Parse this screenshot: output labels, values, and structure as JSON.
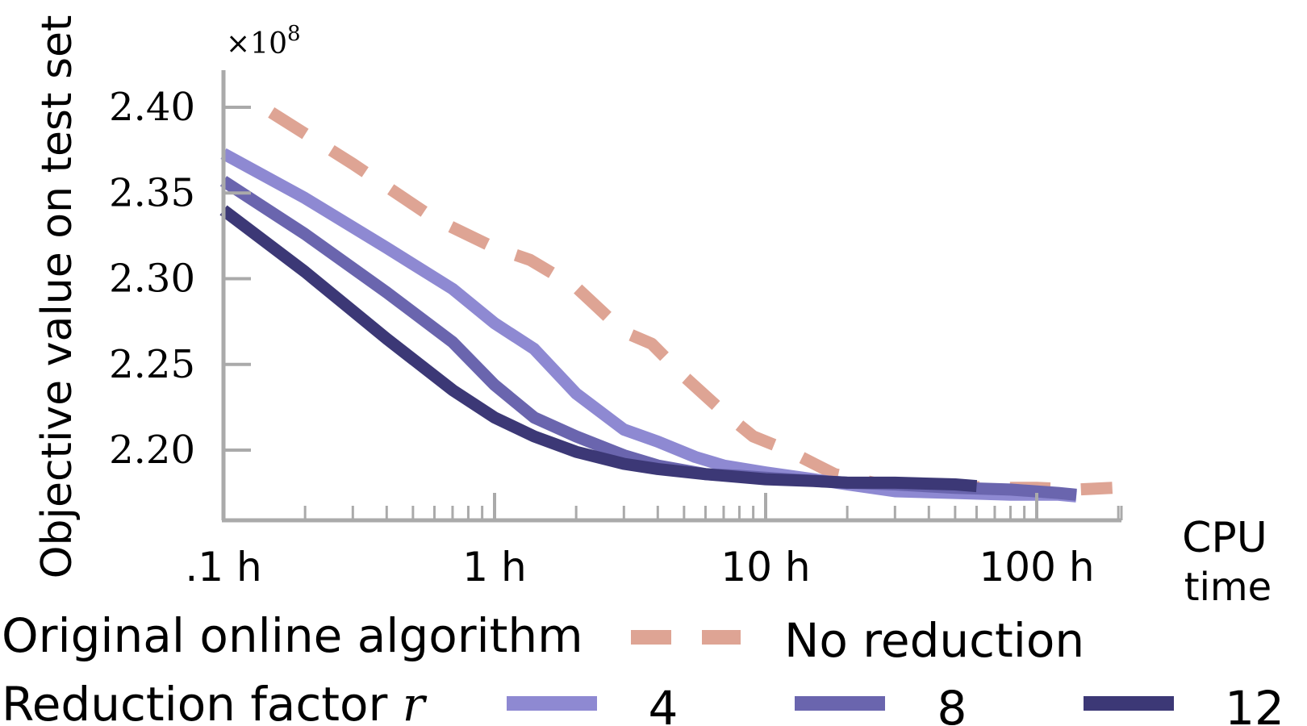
{
  "chart_data": {
    "type": "line",
    "ylabel": "Objective value on test set",
    "y_multiplier": "×10",
    "y_multiplier_exponent": "8",
    "xlabel_line1": "CPU",
    "xlabel_line2": "time",
    "x_scale": "log",
    "xlim": [
      0.1,
      200
    ],
    "ylim": [
      2.17,
      2.42
    ],
    "x_ticks": [
      0.1,
      1,
      10,
      100
    ],
    "x_tick_labels": [
      ".1 h",
      "1 h",
      "10 h",
      "100 h"
    ],
    "y_ticks": [
      2.2,
      2.25,
      2.3,
      2.35,
      2.4
    ],
    "y_tick_labels": [
      "2.20",
      "2.25",
      "2.30",
      "2.35",
      "2.40"
    ],
    "legend": {
      "position": "bottom",
      "group1_label": "Original online algorithm",
      "group2_label": "Reduction factor",
      "group2_symbol": "r"
    },
    "series": [
      {
        "name": "No reduction",
        "color": "#dea494",
        "style": "dashed",
        "x": [
          0.15,
          0.3,
          0.6,
          1.0,
          1.35,
          2.0,
          3.0,
          3.8,
          5.0,
          7.0,
          9.0,
          12.0,
          18.0,
          25.0,
          35.0,
          50.0,
          70.0,
          100.0,
          140.0,
          190.0
        ],
        "y": [
          2.397,
          2.367,
          2.335,
          2.318,
          2.311,
          2.295,
          2.269,
          2.262,
          2.243,
          2.222,
          2.208,
          2.2,
          2.186,
          2.181,
          2.18,
          2.179,
          2.178,
          2.178,
          2.177,
          2.178
        ]
      },
      {
        "name": "4",
        "color": "#8e89d2",
        "style": "solid",
        "x": [
          0.1,
          0.2,
          0.4,
          0.7,
          1.0,
          1.4,
          2.0,
          3.0,
          4.0,
          5.5,
          7.0,
          10.0,
          15.0,
          20.0,
          30.0,
          50.0,
          80.0,
          120.0,
          140.0
        ],
        "y": [
          2.373,
          2.347,
          2.318,
          2.294,
          2.274,
          2.259,
          2.233,
          2.212,
          2.205,
          2.196,
          2.191,
          2.187,
          2.183,
          2.18,
          2.176,
          2.175,
          2.174,
          2.174,
          2.173
        ]
      },
      {
        "name": "8",
        "color": "#6a65ae",
        "style": "solid",
        "x": [
          0.1,
          0.2,
          0.4,
          0.7,
          1.0,
          1.4,
          2.0,
          3.0,
          4.0,
          6.0,
          8.0,
          12.0,
          20.0,
          30.0,
          50.0,
          80.0,
          120.0,
          140.0
        ],
        "y": [
          2.357,
          2.326,
          2.292,
          2.263,
          2.238,
          2.219,
          2.208,
          2.197,
          2.191,
          2.186,
          2.185,
          2.183,
          2.181,
          2.18,
          2.178,
          2.177,
          2.175,
          2.174
        ]
      },
      {
        "name": "12",
        "color": "#3c3876",
        "style": "solid",
        "x": [
          0.1,
          0.2,
          0.4,
          0.7,
          1.0,
          1.4,
          2.0,
          3.0,
          4.0,
          6.0,
          10.0,
          15.0,
          20.0,
          30.0,
          50.0,
          60.0
        ],
        "y": [
          2.34,
          2.304,
          2.265,
          2.235,
          2.219,
          2.208,
          2.199,
          2.192,
          2.189,
          2.186,
          2.183,
          2.182,
          2.181,
          2.181,
          2.18,
          2.179
        ]
      }
    ]
  }
}
